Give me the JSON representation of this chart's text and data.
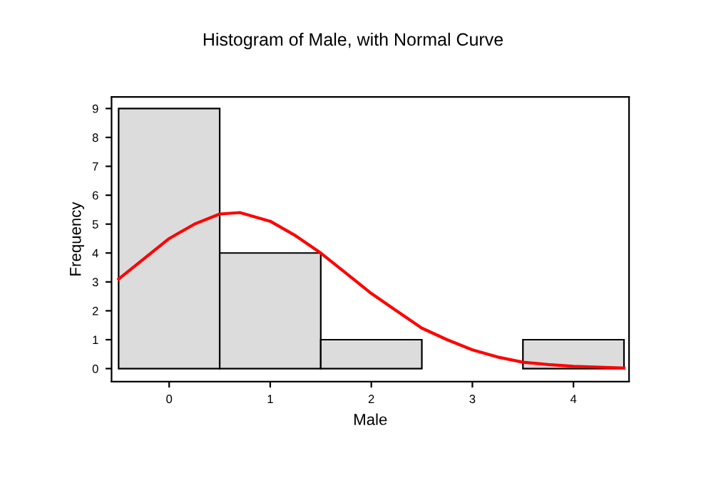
{
  "chart_data": {
    "type": "histogram",
    "title": "Histogram of Male, with Normal Curve",
    "xlabel": "Male",
    "ylabel": "Frequency",
    "bins": [
      -0.5,
      0.5,
      1.5,
      2.5,
      3.5,
      4.5
    ],
    "values": [
      9,
      4,
      1,
      0,
      1
    ],
    "color": "#dcdcdc",
    "series": [
      {
        "type": "line",
        "color": "#ff0000",
        "x": [
          -0.5,
          -0.25,
          0,
          0.25,
          0.5,
          0.7,
          1,
          1.25,
          1.5,
          1.75,
          2,
          2.25,
          2.5,
          2.75,
          3,
          3.25,
          3.5,
          3.75,
          4,
          4.25,
          4.5
        ],
        "values": [
          3.1,
          3.8,
          4.5,
          5.0,
          5.35,
          5.4,
          5.1,
          4.6,
          4.0,
          3.3,
          2.6,
          2.0,
          1.4,
          1.0,
          0.65,
          0.4,
          0.22,
          0.14,
          0.08,
          0.05,
          0.02
        ]
      }
    ],
    "xlim": [
      -0.57,
      4.55
    ],
    "ylim": [
      -0.45,
      9.4
    ],
    "xticks": [
      0,
      1,
      2,
      3,
      4
    ],
    "yticks": [
      0,
      1,
      2,
      3,
      4,
      5,
      6,
      7,
      8,
      9
    ],
    "grid": false,
    "legend": false
  }
}
